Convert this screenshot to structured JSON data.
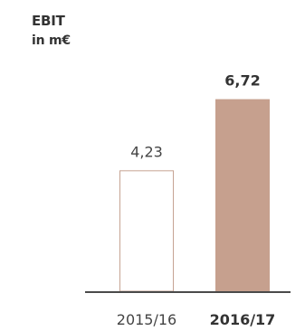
{
  "chart_data": {
    "type": "bar",
    "title": "EBIT",
    "subtitle": "in m€",
    "categories": [
      "2015/16",
      "2016/17"
    ],
    "values": [
      4.23,
      6.72
    ],
    "value_labels": [
      "4,23",
      "6,72"
    ],
    "highlight_index": 1,
    "ylim": [
      0,
      7.5
    ],
    "grid": false,
    "legend": "none",
    "colors": {
      "outline_bar_stroke": "#c6a393",
      "outline_bar_fill": "#ffffff",
      "filled_bar": "#c6a08e",
      "baseline": "#4a4a4a"
    }
  }
}
